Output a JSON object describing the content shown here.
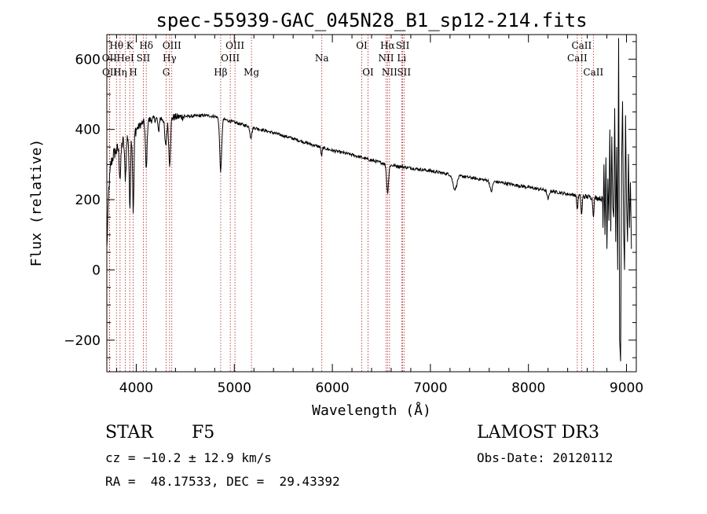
{
  "chart_data": {
    "type": "line",
    "title": "spec-55939-GAC_045N28_B1_sp12-214.fits",
    "xlabel": "Wavelength (Å)",
    "ylabel": "Flux (relative)",
    "xlim": [
      3700,
      9100
    ],
    "ylim": [
      -290,
      670
    ],
    "x_ticks": [
      4000,
      5000,
      6000,
      7000,
      8000,
      9000
    ],
    "y_ticks": [
      -200,
      0,
      200,
      400,
      600
    ],
    "continuum_points": [
      [
        3700,
        60
      ],
      [
        3720,
        230
      ],
      [
        3740,
        300
      ],
      [
        3770,
        330
      ],
      [
        3800,
        340
      ],
      [
        3850,
        360
      ],
      [
        3900,
        380
      ],
      [
        3950,
        390
      ],
      [
        4000,
        400
      ],
      [
        4050,
        415
      ],
      [
        4100,
        425
      ],
      [
        4200,
        430
      ],
      [
        4300,
        432
      ],
      [
        4400,
        435
      ],
      [
        4500,
        437
      ],
      [
        4600,
        438
      ],
      [
        4700,
        440
      ],
      [
        4800,
        437
      ],
      [
        4900,
        428
      ],
      [
        5000,
        420
      ],
      [
        5200,
        405
      ],
      [
        5400,
        390
      ],
      [
        5600,
        374
      ],
      [
        5800,
        356
      ],
      [
        6000,
        340
      ],
      [
        6200,
        328
      ],
      [
        6400,
        312
      ],
      [
        6600,
        298
      ],
      [
        6800,
        290
      ],
      [
        7000,
        282
      ],
      [
        7200,
        272
      ],
      [
        7400,
        263
      ],
      [
        7600,
        254
      ],
      [
        7800,
        245
      ],
      [
        8000,
        235
      ],
      [
        8200,
        226
      ],
      [
        8400,
        216
      ],
      [
        8600,
        208
      ],
      [
        8700,
        205
      ],
      [
        8800,
        200
      ],
      [
        9000,
        190
      ],
      [
        9050,
        180
      ]
    ],
    "absorption_features": [
      {
        "wavelength": 3835,
        "depth": 90,
        "width": 8
      },
      {
        "wavelength": 3889,
        "depth": 110,
        "width": 8
      },
      {
        "wavelength": 3934,
        "depth": 200,
        "width": 7
      },
      {
        "wavelength": 3970,
        "depth": 230,
        "width": 7
      },
      {
        "wavelength": 4102,
        "depth": 140,
        "width": 8
      },
      {
        "wavelength": 4227,
        "depth": 40,
        "width": 6
      },
      {
        "wavelength": 4300,
        "depth": 80,
        "width": 10
      },
      {
        "wavelength": 4340,
        "depth": 130,
        "width": 9
      },
      {
        "wavelength": 4861,
        "depth": 150,
        "width": 10
      },
      {
        "wavelength": 5170,
        "depth": 30,
        "width": 10
      },
      {
        "wavelength": 5890,
        "depth": 25,
        "width": 6
      },
      {
        "wavelength": 6563,
        "depth": 80,
        "width": 10
      },
      {
        "wavelength": 7250,
        "depth": 40,
        "width": 20
      },
      {
        "wavelength": 7620,
        "depth": 30,
        "width": 12
      },
      {
        "wavelength": 8200,
        "depth": 25,
        "width": 10
      },
      {
        "wavelength": 8498,
        "depth": 40,
        "width": 6
      },
      {
        "wavelength": 8542,
        "depth": 55,
        "width": 6
      },
      {
        "wavelength": 8662,
        "depth": 50,
        "width": 6
      }
    ],
    "noisy_tail": [
      [
        8760,
        120
      ],
      [
        8770,
        300
      ],
      [
        8780,
        100
      ],
      [
        8790,
        320
      ],
      [
        8800,
        60
      ],
      [
        8810,
        260
      ],
      [
        8820,
        140
      ],
      [
        8830,
        400
      ],
      [
        8840,
        110
      ],
      [
        8850,
        380
      ],
      [
        8860,
        180
      ],
      [
        8870,
        150
      ],
      [
        8880,
        460
      ],
      [
        8890,
        80
      ],
      [
        8900,
        350
      ],
      [
        8910,
        0
      ],
      [
        8920,
        660
      ],
      [
        8930,
        -200
      ],
      [
        8940,
        -260
      ],
      [
        8950,
        300
      ],
      [
        8960,
        480
      ],
      [
        8970,
        120
      ],
      [
        8980,
        0
      ],
      [
        8990,
        440
      ],
      [
        9000,
        200
      ],
      [
        9010,
        80
      ],
      [
        9020,
        330
      ],
      [
        9030,
        120
      ],
      [
        9040,
        250
      ],
      [
        9050,
        60
      ]
    ],
    "spectral_lines": [
      {
        "label": "Hθ",
        "wavelength": 3798,
        "row": 1
      },
      {
        "label": "OII",
        "wavelength": 3727,
        "row": 2
      },
      {
        "label": "Hη",
        "wavelength": 3835,
        "row": 3
      },
      {
        "label": "OII",
        "wavelength": 3729,
        "row": 3
      },
      {
        "label": "HeI",
        "wavelength": 3889,
        "row": 2
      },
      {
        "label": "K",
        "wavelength": 3934,
        "row": 1
      },
      {
        "label": "H",
        "wavelength": 3969,
        "row": 3
      },
      {
        "label": "Hδ",
        "wavelength": 4102,
        "row": 1
      },
      {
        "label": "SII",
        "wavelength": 4072,
        "row": 2
      },
      {
        "label": "OIII",
        "wavelength": 4363,
        "row": 1
      },
      {
        "label": "Hγ",
        "wavelength": 4340,
        "row": 2
      },
      {
        "label": "G",
        "wavelength": 4305,
        "row": 3
      },
      {
        "label": "Hβ",
        "wavelength": 4861,
        "row": 3
      },
      {
        "label": "OIII",
        "wavelength": 5007,
        "row": 1
      },
      {
        "label": "OIII",
        "wavelength": 4959,
        "row": 2
      },
      {
        "label": "Mg",
        "wavelength": 5175,
        "row": 3
      },
      {
        "label": "Na",
        "wavelength": 5893,
        "row": 2
      },
      {
        "label": "OI",
        "wavelength": 6300,
        "row": 1
      },
      {
        "label": "OI",
        "wavelength": 6364,
        "row": 3
      },
      {
        "label": "Hα",
        "wavelength": 6563,
        "row": 1
      },
      {
        "label": "NII",
        "wavelength": 6548,
        "row": 2
      },
      {
        "label": "NII",
        "wavelength": 6583,
        "row": 3
      },
      {
        "label": "SII",
        "wavelength": 6717,
        "row": 1
      },
      {
        "label": "Li",
        "wavelength": 6707,
        "row": 2
      },
      {
        "label": "SII",
        "wavelength": 6731,
        "row": 3
      },
      {
        "label": "CaII",
        "wavelength": 8542,
        "row": 1
      },
      {
        "label": "CaII",
        "wavelength": 8498,
        "row": 2
      },
      {
        "label": "CaII",
        "wavelength": 8662,
        "row": 3
      }
    ],
    "line_color": "#000000",
    "marker_color": "#b22222"
  },
  "footer": {
    "object_class": "STAR",
    "subclass": "F5",
    "survey": "LAMOST DR3",
    "redshift_text": "cz = −10.2 ± 12.9 km/s",
    "obs_date_text": "Obs-Date: 20120112",
    "coords_text": "RA =  48.17533, DEC =  29.43392"
  }
}
